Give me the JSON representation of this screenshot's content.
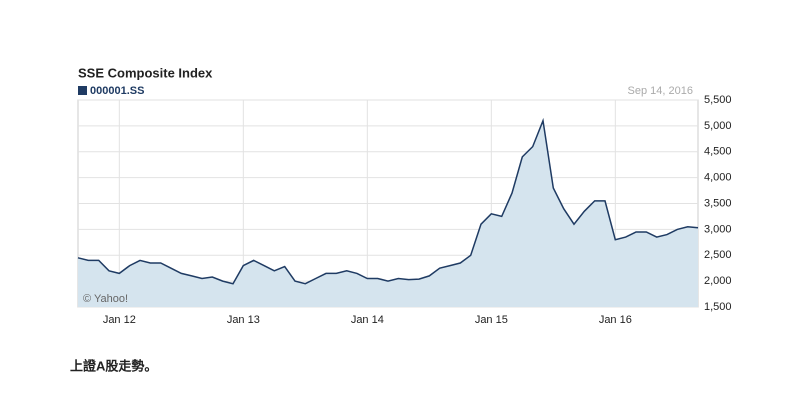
{
  "chart_data": {
    "type": "area",
    "title": "SSE Composite Index",
    "date_label": "Sep 14, 2016",
    "credit": "© Yahoo!",
    "x": [
      "Sep 11",
      "Oct 11",
      "Nov 11",
      "Dec 11",
      "Jan 12",
      "Feb 12",
      "Mar 12",
      "Apr 12",
      "May 12",
      "Jun 12",
      "Jul 12",
      "Aug 12",
      "Sep 12",
      "Oct 12",
      "Nov 12",
      "Dec 12",
      "Jan 13",
      "Feb 13",
      "Mar 13",
      "Apr 13",
      "May 13",
      "Jun 13",
      "Jul 13",
      "Aug 13",
      "Sep 13",
      "Oct 13",
      "Nov 13",
      "Dec 13",
      "Jan 14",
      "Feb 14",
      "Mar 14",
      "Apr 14",
      "May 14",
      "Jun 14",
      "Jul 14",
      "Aug 14",
      "Sep 14",
      "Oct 14",
      "Nov 14",
      "Dec 14",
      "Jan 15",
      "Feb 15",
      "Mar 15",
      "Apr 15",
      "May 15",
      "Jun 15",
      "Jul 15",
      "Aug 15",
      "Sep 15",
      "Oct 15",
      "Nov 15",
      "Dec 15",
      "Jan 16",
      "Feb 16",
      "Mar 16",
      "Apr 16",
      "May 16",
      "Jun 16",
      "Jul 16",
      "Aug 16",
      "Sep 16"
    ],
    "series": [
      {
        "name": "000001.SS",
        "color": "#1f3b63",
        "fill": "#d5e4ee",
        "values": [
          2450,
          2400,
          2400,
          2200,
          2150,
          2300,
          2400,
          2350,
          2350,
          2250,
          2150,
          2100,
          2050,
          2080,
          2000,
          1950,
          2300,
          2400,
          2300,
          2200,
          2280,
          2000,
          1950,
          2050,
          2150,
          2150,
          2200,
          2150,
          2050,
          2050,
          2000,
          2050,
          2030,
          2040,
          2100,
          2250,
          2300,
          2350,
          2500,
          3100,
          3300,
          3250,
          3700,
          4400,
          4600,
          5100,
          3800,
          3400,
          3100,
          3350,
          3550,
          3550,
          2800,
          2850,
          2950,
          2950,
          2850,
          2900,
          3000,
          3050,
          3030
        ]
      }
    ],
    "xticks": [
      "Jan 12",
      "Jan 13",
      "Jan 14",
      "Jan 15",
      "Jan 16"
    ],
    "ylim": [
      1500,
      5500
    ],
    "yticks": [
      {
        "value": 1500,
        "label": "1,500"
      },
      {
        "value": 2000,
        "label": "2,000"
      },
      {
        "value": 2500,
        "label": "2,500"
      },
      {
        "value": 3000,
        "label": "3,000"
      },
      {
        "value": 3500,
        "label": "3,500"
      },
      {
        "value": 4000,
        "label": "4,000"
      },
      {
        "value": 4500,
        "label": "4,500"
      },
      {
        "value": 5000,
        "label": "5,000"
      },
      {
        "value": 5500,
        "label": "5,500"
      }
    ],
    "grid": true
  },
  "caption": "上證A股走勢。"
}
